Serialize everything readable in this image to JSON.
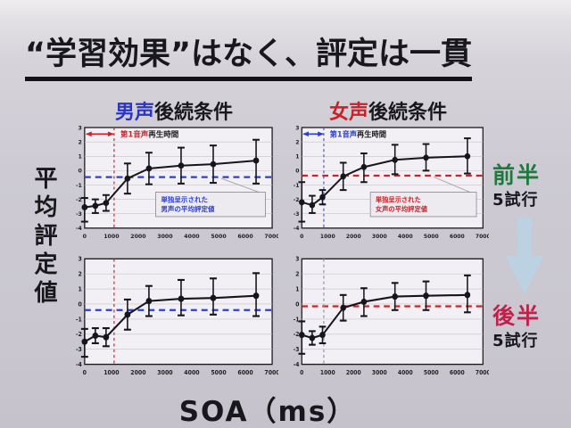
{
  "slide": {
    "title": "“学習効果”はなく、評定は一貫",
    "left_axis_label": "平均評定値",
    "x_axis_label": "SOA（ms）"
  },
  "columns": [
    {
      "voice": "男声",
      "rest": "後続条件",
      "color": "#2a35c0"
    },
    {
      "voice": "女声",
      "rest": "後続条件",
      "color": "#c4232a"
    }
  ],
  "rail": {
    "first_half": "前半",
    "first_half_trials": "5試行",
    "first_half_color": "#1e7a3c",
    "second_half": "後半",
    "second_half_trials": "5試行",
    "second_half_color": "#c0204a",
    "arrow_color": "#bcd2e2"
  },
  "colors": {
    "accent_blue": "#2b3fd0",
    "accent_red": "#c8242a",
    "series": "#15151c"
  },
  "chart_data": [
    {
      "type": "line",
      "name": "male-subsequent-first-half",
      "x": [
        0,
        400,
        800,
        1600,
        2400,
        3600,
        4800,
        6400
      ],
      "y": [
        -2.55,
        -2.45,
        -2.25,
        -0.55,
        0.15,
        0.35,
        0.45,
        0.7
      ],
      "err_minus": [
        1.0,
        0.5,
        0.55,
        1.05,
        1.1,
        1.25,
        1.3,
        1.6
      ],
      "err_plus": [
        0.65,
        0.45,
        0.55,
        1.05,
        1.1,
        1.25,
        1.3,
        1.45
      ],
      "xlim": [
        0,
        7000
      ],
      "ylim": [
        -4,
        3
      ],
      "xticks": [
        0,
        1000,
        2000,
        3000,
        4000,
        5000,
        6000,
        7000
      ],
      "yticks": [
        3,
        2,
        1,
        0,
        -1,
        -2,
        -3,
        -4
      ],
      "hline": {
        "y": -0.45,
        "color": "#2b3fd0"
      },
      "vline": {
        "x": 1100,
        "color": "#c8242a"
      },
      "legend": {
        "colored": "第1音声",
        "black": "再生時間",
        "color": "#c8242a"
      },
      "annotation": {
        "line1": "単独呈示された",
        "line2": "男声の平均評定値",
        "color": "#2b3fd0"
      }
    },
    {
      "type": "line",
      "name": "female-subsequent-first-half",
      "x": [
        0,
        400,
        800,
        1600,
        2400,
        3600,
        4800,
        6400
      ],
      "y": [
        -2.2,
        -2.4,
        -1.85,
        -0.4,
        0.25,
        0.75,
        0.9,
        1.0
      ],
      "err_minus": [
        1.35,
        0.55,
        0.5,
        0.95,
        1.05,
        1.0,
        0.9,
        1.2
      ],
      "err_plus": [
        1.4,
        0.65,
        0.5,
        0.95,
        0.95,
        1.05,
        0.95,
        1.25
      ],
      "xlim": [
        0,
        7000
      ],
      "ylim": [
        -4,
        3
      ],
      "xticks": [
        0,
        1000,
        2000,
        3000,
        4000,
        5000,
        6000,
        7000
      ],
      "yticks": [
        3,
        2,
        1,
        0,
        -1,
        -2,
        -3,
        -4
      ],
      "hline": {
        "y": -0.35,
        "color": "#c8242a"
      },
      "vline": {
        "x": 850,
        "color": "#4455bb"
      },
      "legend": {
        "colored": "第1音声",
        "black": "再生時間",
        "color": "#2b3fd0"
      },
      "annotation": {
        "line1": "単独呈示された",
        "line2": "女声の平均評定値",
        "color": "#c8242a"
      }
    },
    {
      "type": "line",
      "name": "male-subsequent-second-half",
      "x": [
        0,
        400,
        800,
        1600,
        2400,
        3600,
        4800,
        6400
      ],
      "y": [
        -2.5,
        -2.1,
        -2.2,
        -0.7,
        0.2,
        0.35,
        0.4,
        0.55
      ],
      "err_minus": [
        1.0,
        0.5,
        0.6,
        1.0,
        1.0,
        1.1,
        1.1,
        1.35
      ],
      "err_plus": [
        0.85,
        0.5,
        0.6,
        1.0,
        1.0,
        1.25,
        1.3,
        1.5
      ],
      "xlim": [
        0,
        7000
      ],
      "ylim": [
        -4,
        3
      ],
      "xticks": [
        0,
        1000,
        2000,
        3000,
        4000,
        5000,
        6000,
        7000
      ],
      "yticks": [
        3,
        2,
        1,
        0,
        -1,
        -2,
        -3,
        -4
      ],
      "hline": {
        "y": -0.4,
        "color": "#2b3fd0"
      },
      "vline": {
        "x": 1100,
        "color": "#c8242a"
      }
    },
    {
      "type": "line",
      "name": "female-subsequent-second-half",
      "x": [
        0,
        400,
        800,
        1600,
        2400,
        3600,
        4800,
        6400
      ],
      "y": [
        -2.05,
        -2.25,
        -2.05,
        -0.25,
        0.15,
        0.5,
        0.55,
        0.6
      ],
      "err_minus": [
        1.25,
        0.45,
        0.55,
        0.85,
        0.95,
        0.9,
        0.95,
        1.15
      ],
      "err_plus": [
        0.9,
        0.45,
        0.55,
        0.85,
        0.9,
        0.9,
        0.95,
        1.3
      ],
      "xlim": [
        0,
        7000
      ],
      "ylim": [
        -4,
        3
      ],
      "xticks": [
        0,
        1000,
        2000,
        3000,
        4000,
        5000,
        6000,
        7000
      ],
      "yticks": [
        3,
        2,
        1,
        0,
        -1,
        -2,
        -3,
        -4
      ],
      "hline": {
        "y": -0.15,
        "color": "#c8242a"
      },
      "vline": {
        "x": 850,
        "color": "#8892a8"
      }
    }
  ]
}
